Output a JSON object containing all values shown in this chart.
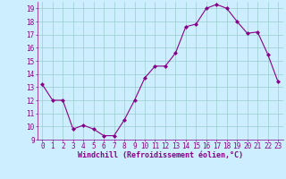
{
  "x": [
    0,
    1,
    2,
    3,
    4,
    5,
    6,
    7,
    8,
    9,
    10,
    11,
    12,
    13,
    14,
    15,
    16,
    17,
    18,
    19,
    20,
    21,
    22,
    23
  ],
  "y": [
    13.2,
    12.0,
    12.0,
    9.8,
    10.1,
    9.8,
    9.3,
    9.3,
    10.5,
    12.0,
    13.7,
    14.6,
    14.6,
    15.6,
    17.6,
    17.8,
    19.0,
    19.3,
    19.0,
    18.0,
    17.1,
    17.2,
    15.5,
    13.4
  ],
  "line_color": "#880088",
  "marker": "D",
  "marker_size": 2.0,
  "bg_color": "#cceeff",
  "grid_color": "#99cccc",
  "xlabel": "Windchill (Refroidissement éolien,°C)",
  "yticks": [
    9,
    10,
    11,
    12,
    13,
    14,
    15,
    16,
    17,
    18,
    19
  ],
  "xtick_labels": [
    "0",
    "1",
    "2",
    "3",
    "4",
    "5",
    "6",
    "7",
    "8",
    "9",
    "10",
    "11",
    "12",
    "13",
    "14",
    "15",
    "16",
    "17",
    "18",
    "19",
    "20",
    "21",
    "22",
    "23"
  ],
  "ylim": [
    9.0,
    19.5
  ],
  "xlim": [
    -0.5,
    23.5
  ],
  "tick_color": "#880088",
  "font_size": 5.5,
  "xlabel_fontsize": 6.0
}
